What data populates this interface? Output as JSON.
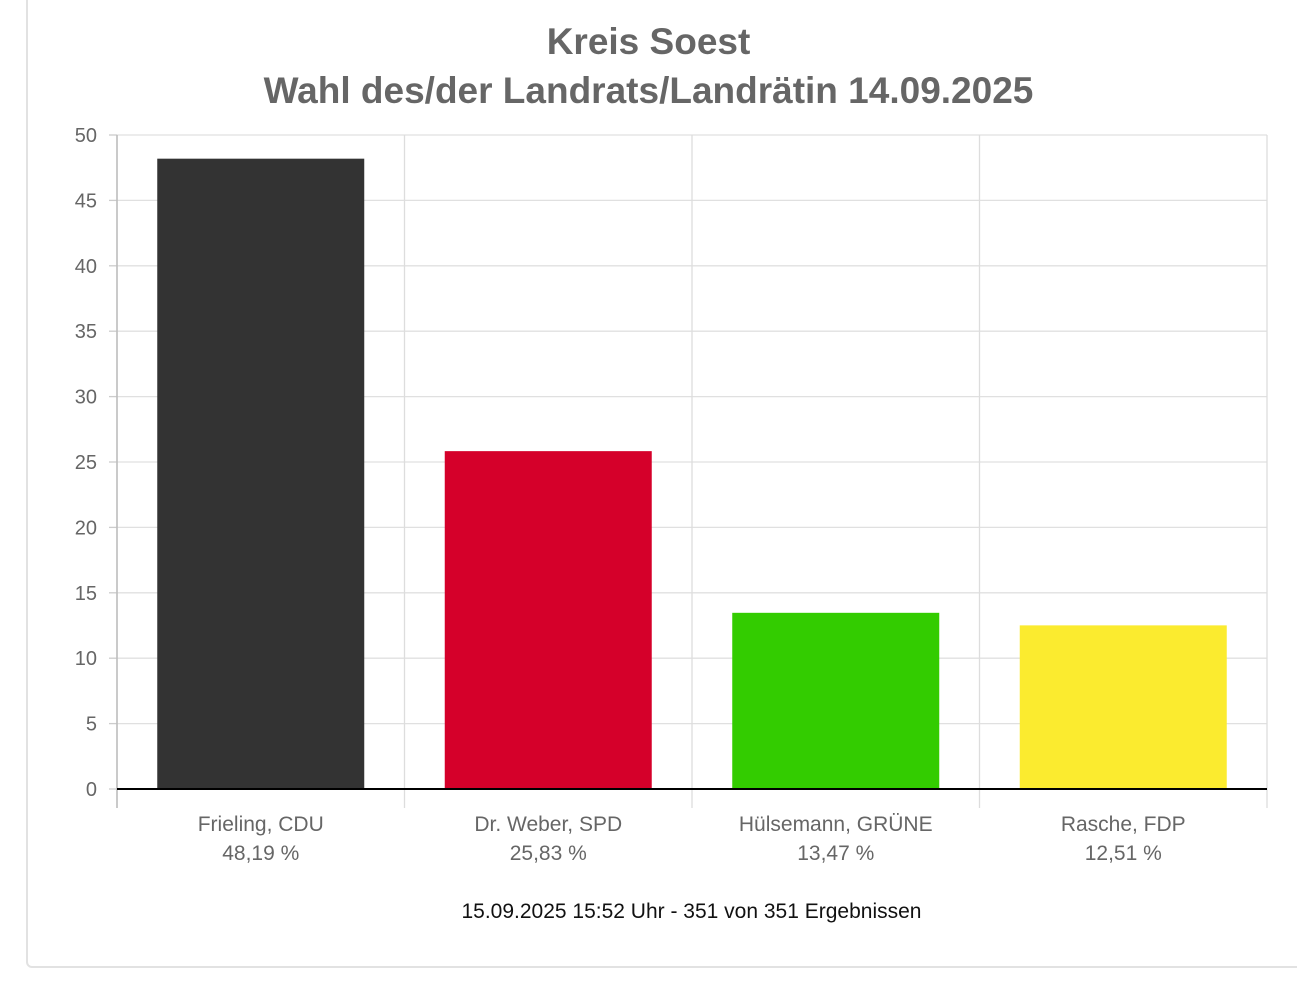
{
  "chart_data": {
    "type": "bar",
    "title": [
      "Kreis Soest",
      "Wahl des/der Landrats/Landrätin 14.09.2025"
    ],
    "categories": [
      "Frieling, CDU",
      "Dr. Weber, SPD",
      "Hülsemann, GRÜNE",
      "Rasche, FDP"
    ],
    "value_labels": [
      "48,19 %",
      "25,83 %",
      "13,47 %",
      "12,51 %"
    ],
    "values": [
      48.19,
      25.83,
      13.47,
      12.51
    ],
    "colors": [
      "#333333",
      "#d5002a",
      "#33cc00",
      "#fbeb2f"
    ],
    "ylim": [
      0,
      50
    ],
    "yticks": [
      0,
      5,
      10,
      15,
      20,
      25,
      30,
      35,
      40,
      45,
      50
    ],
    "grid": true,
    "legend": "none"
  },
  "footer": "15.09.2025 15:52 Uhr - 351 von 351 Ergebnissen"
}
